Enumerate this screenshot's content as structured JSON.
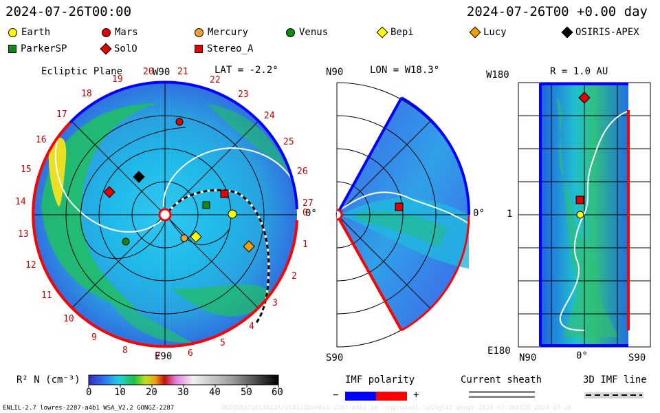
{
  "header": {
    "timestamp_left": "2024-07-26T00:00",
    "timestamp_right": "2024-07-26T00 +0.00 day"
  },
  "legend": {
    "items": [
      {
        "label": "Earth",
        "shape": "circle",
        "color": "#ffff00"
      },
      {
        "label": "Mars",
        "shape": "circle",
        "color": "#e00000"
      },
      {
        "label": "Mercury",
        "shape": "circle",
        "color": "#f0a030"
      },
      {
        "label": "Venus",
        "shape": "circle",
        "color": "#0a8a0a"
      },
      {
        "label": "Bepi",
        "shape": "diamond",
        "color": "#ffff00"
      },
      {
        "label": "Lucy",
        "shape": "diamond",
        "color": "#f0a000"
      },
      {
        "label": "OSIRIS-APEX",
        "shape": "diamond",
        "color": "#000000"
      },
      {
        "label": "ParkerSP",
        "shape": "square",
        "color": "#108a10"
      },
      {
        "label": "SolO",
        "shape": "diamond",
        "color": "#e00000"
      },
      {
        "label": "Stereo_A",
        "shape": "square",
        "color": "#e00000"
      }
    ]
  },
  "ecliptic": {
    "title": "Ecliptic Plane",
    "lat": "LAT = -2.2°",
    "top_label": "W90",
    "bottom_label": "E90",
    "right_label": "0°",
    "carrington": [
      "20",
      "21",
      "22",
      "23",
      "24",
      "25",
      "26",
      "27",
      "0",
      "1",
      "2",
      "3",
      "4",
      "5",
      "6",
      "7",
      "8",
      "9",
      "10",
      "11",
      "12",
      "13",
      "14",
      "15",
      "16",
      "17",
      "18",
      "19"
    ]
  },
  "meridional": {
    "lon": "LON = W18.3°",
    "top_label": "N90",
    "bottom_label": "S90",
    "right_label": "0°"
  },
  "radial": {
    "r": "R = 1.0 AU",
    "top_left": "W180",
    "bottom_left": "E180",
    "mid_left": "1",
    "bottom_labels": [
      "N90",
      "0°",
      "S90"
    ]
  },
  "colorbar": {
    "label": "R² N (cm⁻³)",
    "ticks": [
      "0",
      "10",
      "20",
      "30",
      "40",
      "50",
      "60"
    ]
  },
  "imf": {
    "title": "IMF polarity",
    "minus": "−",
    "plus": "+",
    "neg_color": "#0000ff",
    "pos_color": "#ff0000"
  },
  "sheath": {
    "title": "Current sheath"
  },
  "imf3d": {
    "title": "3D IMF line"
  },
  "footer": {
    "left": "ENLIL-2.7 lowres-2287-a4b1 WSA_V2.2 GONGZ-2287",
    "right": "UNIQUE072615812A/2581s30x90x1-2287-a4b1.16--noptunnel-lg53gS42.gongz-2024-07-2601Z0   2024-07-26"
  }
}
